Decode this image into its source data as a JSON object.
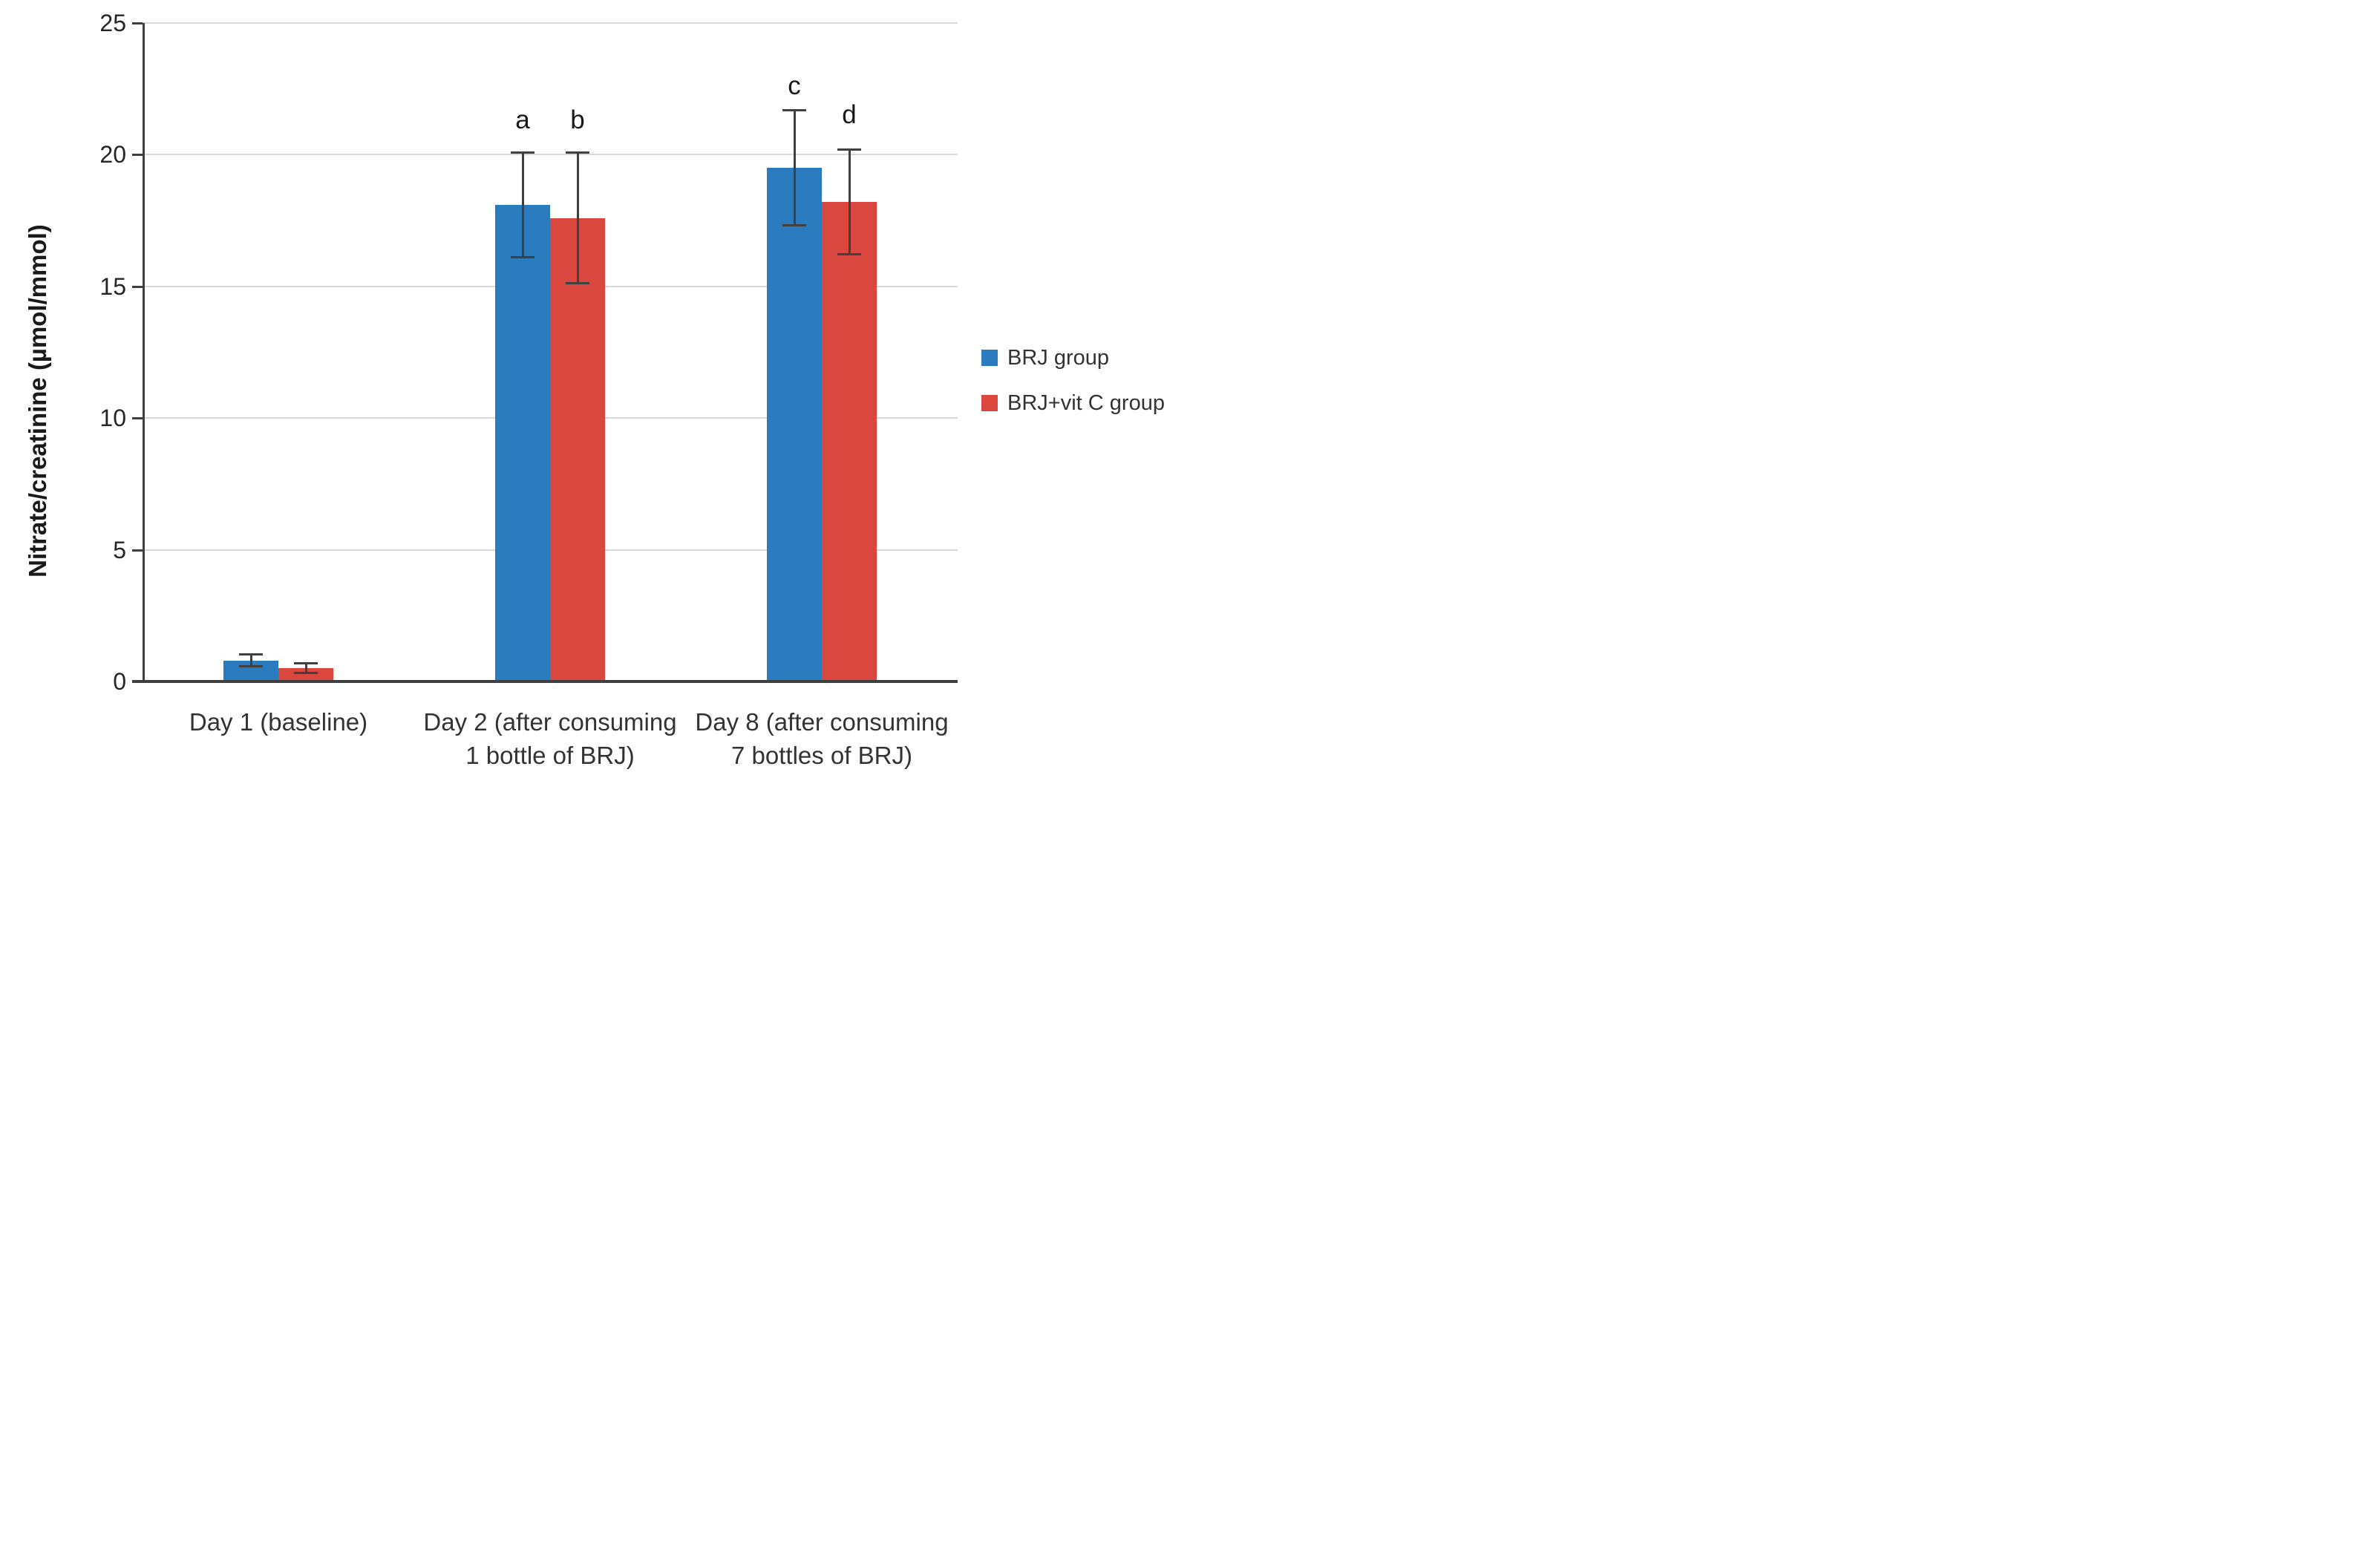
{
  "chart_data": {
    "type": "bar",
    "title": "",
    "xlabel": "",
    "ylabel": "Nitrate/creatinine (µmol/mmol)",
    "ylim": [
      0,
      25
    ],
    "yticks": [
      0,
      5,
      10,
      15,
      20,
      25
    ],
    "grid": "horizontal",
    "legend_position": "right-middle",
    "categories": [
      "Day 1 (baseline)",
      "Day 2 (after consuming\n1 bottle of BRJ)",
      "Day 8 (after consuming\n7 bottles of BRJ)"
    ],
    "series": [
      {
        "name": "BRJ group",
        "color": "#2b7bbf",
        "values": [
          0.8,
          18.1,
          19.5
        ],
        "errors": [
          0.25,
          2.0,
          2.2
        ]
      },
      {
        "name": "BRJ+vit C group",
        "color": "#d9473f",
        "values": [
          0.5,
          17.6,
          18.2
        ],
        "errors": [
          0.2,
          2.5,
          2.0
        ]
      }
    ],
    "annotations": [
      {
        "text": "a",
        "category": 1,
        "series": 0,
        "value": 21.3
      },
      {
        "text": "b",
        "category": 1,
        "series": 1,
        "value": 21.3
      },
      {
        "text": "c",
        "category": 2,
        "series": 0,
        "value": 22.6
      },
      {
        "text": "d",
        "category": 2,
        "series": 1,
        "value": 21.5
      }
    ],
    "colors": {
      "gridline": "#d9d9d9",
      "axis": "#3f3f3f",
      "error_bar": "#404040",
      "text": "#333333"
    }
  }
}
